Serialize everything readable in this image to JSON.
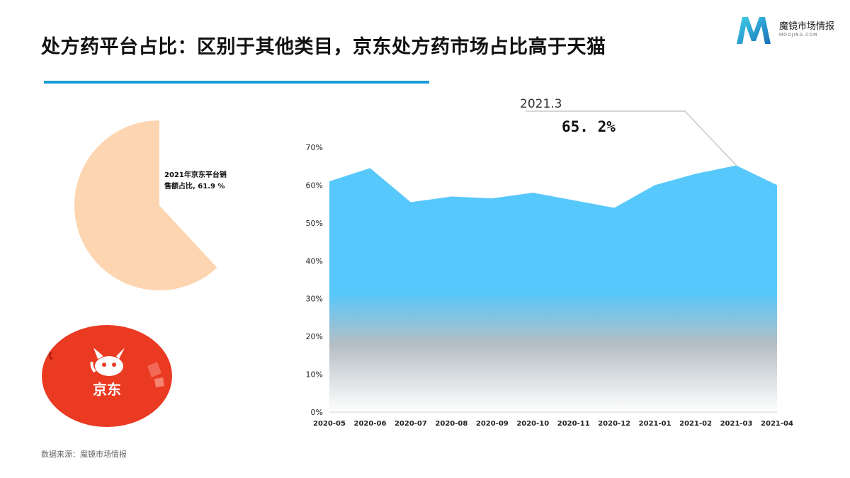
{
  "header": {
    "title": "处方药平台占比：区别于其他类目，京东处方药市场占比高于天猫"
  },
  "brand": {
    "name": "魔镜市场情报",
    "domain": "MOOJING.COM",
    "primary_color": "#1a9ad6"
  },
  "footer": {
    "source": "数据来源：魔镜市场情报"
  },
  "logo": {
    "name": "京东",
    "color": "#e8321e"
  },
  "chart_data": [
    {
      "type": "pie",
      "slices": [
        {
          "label_line1": "2021年京东平台销",
          "label_line2": "售额占比, 61.9 %",
          "value": 61.9,
          "color": "#fdd5b1"
        },
        {
          "label": "",
          "value": 38.1,
          "color": "#ffffff"
        }
      ]
    },
    {
      "type": "area",
      "categories": [
        "2020-05",
        "2020-06",
        "2020-07",
        "2020-08",
        "2020-09",
        "2020-10",
        "2020-11",
        "2020-12",
        "2021-01",
        "2021-02",
        "2021-03",
        "2021-04"
      ],
      "values": [
        61.0,
        64.5,
        55.5,
        57.0,
        56.5,
        58.0,
        56.0,
        54.0,
        60.0,
        63.0,
        65.2,
        60.0
      ],
      "y_ticks": [
        "0%",
        "10%",
        "20%",
        "30%",
        "40%",
        "50%",
        "60%",
        "70%"
      ],
      "ylim": [
        0,
        70
      ],
      "fill_top_color": "#57c8fb",
      "fill_bottom_color": "#ffffff",
      "annotation": {
        "index": 10,
        "date_label": "2021.3",
        "value_label": "65. 2%"
      }
    }
  ]
}
